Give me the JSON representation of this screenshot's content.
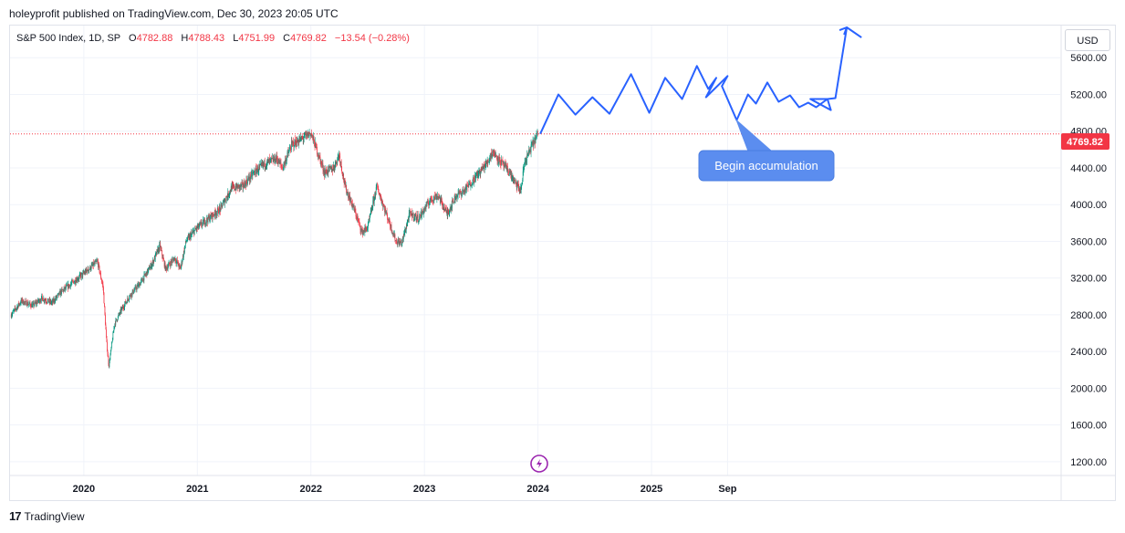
{
  "header": {
    "publisher_line": "holeyprofit published on TradingView.com, Dec 30, 2023 20:05 UTC"
  },
  "legend": {
    "symbol": "S&P 500 Index, 1D, SP",
    "open_label": "O",
    "open": "4782.88",
    "high_label": "H",
    "high": "4788.43",
    "low_label": "L",
    "low": "4751.99",
    "close_label": "C",
    "close": "4769.82",
    "change": "−13.54 (−0.28%)"
  },
  "currency_button": "USD",
  "current_price_label": "4769.82",
  "annotation": {
    "text": "Begin accumulation"
  },
  "footer": {
    "brand": "TradingView",
    "logo_glyph": "17"
  },
  "colors": {
    "up": "#089981",
    "down": "#f23645",
    "projection": "#2962ff",
    "callout": "#5b8def",
    "price_tag": "#f23645"
  },
  "chart_data": {
    "type": "candlestick",
    "y_ticks": [
      1200,
      1600,
      2000,
      2400,
      2800,
      3200,
      3600,
      4000,
      4400,
      4800,
      5200,
      5600
    ],
    "y_tick_labels": [
      "1200.00",
      "1600.00",
      "2000.00",
      "2400.00",
      "2800.00",
      "3200.00",
      "3600.00",
      "4000.00",
      "4400.00",
      "4800.00",
      "5200.00",
      "5600.00"
    ],
    "ylim": [
      1050,
      5950
    ],
    "x_ticks": [
      {
        "label": "2020",
        "t": 2020.0
      },
      {
        "label": "2021",
        "t": 2021.0
      },
      {
        "label": "2022",
        "t": 2022.0
      },
      {
        "label": "2023",
        "t": 2023.0
      },
      {
        "label": "2024",
        "t": 2024.0
      },
      {
        "label": "2025",
        "t": 2025.0
      },
      {
        "label": "Sep",
        "t": 2025.67
      }
    ],
    "xlim": [
      2019.35,
      2028.6
    ],
    "price_path": [
      [
        2019.36,
        2800
      ],
      [
        2019.45,
        2950
      ],
      [
        2019.55,
        2900
      ],
      [
        2019.63,
        2980
      ],
      [
        2019.72,
        2930
      ],
      [
        2019.8,
        3050
      ],
      [
        2019.9,
        3150
      ],
      [
        2020.0,
        3250
      ],
      [
        2020.12,
        3380
      ],
      [
        2020.17,
        3100
      ],
      [
        2020.2,
        2500
      ],
      [
        2020.22,
        2240
      ],
      [
        2020.27,
        2700
      ],
      [
        2020.33,
        2850
      ],
      [
        2020.4,
        3000
      ],
      [
        2020.5,
        3150
      ],
      [
        2020.6,
        3350
      ],
      [
        2020.67,
        3550
      ],
      [
        2020.72,
        3300
      ],
      [
        2020.8,
        3420
      ],
      [
        2020.85,
        3300
      ],
      [
        2020.9,
        3600
      ],
      [
        2021.0,
        3750
      ],
      [
        2021.1,
        3850
      ],
      [
        2021.2,
        3950
      ],
      [
        2021.3,
        4180
      ],
      [
        2021.4,
        4200
      ],
      [
        2021.5,
        4350
      ],
      [
        2021.6,
        4450
      ],
      [
        2021.7,
        4500
      ],
      [
        2021.75,
        4400
      ],
      [
        2021.83,
        4650
      ],
      [
        2021.9,
        4700
      ],
      [
        2022.0,
        4780
      ],
      [
        2022.05,
        4600
      ],
      [
        2022.12,
        4350
      ],
      [
        2022.2,
        4400
      ],
      [
        2022.25,
        4550
      ],
      [
        2022.3,
        4200
      ],
      [
        2022.38,
        3950
      ],
      [
        2022.45,
        3700
      ],
      [
        2022.5,
        3750
      ],
      [
        2022.58,
        4200
      ],
      [
        2022.65,
        3950
      ],
      [
        2022.75,
        3600
      ],
      [
        2022.8,
        3580
      ],
      [
        2022.87,
        3900
      ],
      [
        2022.95,
        3850
      ],
      [
        2023.05,
        4050
      ],
      [
        2023.12,
        4100
      ],
      [
        2023.2,
        3900
      ],
      [
        2023.28,
        4100
      ],
      [
        2023.35,
        4150
      ],
      [
        2023.45,
        4300
      ],
      [
        2023.55,
        4450
      ],
      [
        2023.6,
        4580
      ],
      [
        2023.68,
        4450
      ],
      [
        2023.75,
        4350
      ],
      [
        2023.8,
        4230
      ],
      [
        2023.85,
        4150
      ],
      [
        2023.88,
        4450
      ],
      [
        2023.95,
        4650
      ],
      [
        2024.0,
        4769.82
      ]
    ],
    "projection_path": [
      [
        2024.02,
        4769.82
      ],
      [
        2024.18,
        5200
      ],
      [
        2024.33,
        4980
      ],
      [
        2024.48,
        5170
      ],
      [
        2024.63,
        4990
      ],
      [
        2024.82,
        5420
      ],
      [
        2024.98,
        5000
      ],
      [
        2025.12,
        5380
      ],
      [
        2025.27,
        5150
      ],
      [
        2025.4,
        5510
      ],
      [
        2025.5,
        5260
      ],
      [
        2025.57,
        5380
      ],
      [
        2025.48,
        5170
      ],
      [
        2025.67,
        5400
      ],
      [
        2025.62,
        5290
      ],
      [
        2025.75,
        4920
      ],
      [
        2025.85,
        5200
      ],
      [
        2025.92,
        5100
      ],
      [
        2026.02,
        5330
      ],
      [
        2026.12,
        5120
      ],
      [
        2026.22,
        5190
      ],
      [
        2026.3,
        5060
      ],
      [
        2026.38,
        5110
      ],
      [
        2026.45,
        5060
      ],
      [
        2026.55,
        5150
      ],
      [
        2026.58,
        5030
      ],
      [
        2026.4,
        5150
      ],
      [
        2026.55,
        5150
      ],
      [
        2026.62,
        5160
      ],
      [
        2026.72,
        5930
      ],
      [
        2026.85,
        5820
      ]
    ],
    "last_price": 4769.82
  }
}
